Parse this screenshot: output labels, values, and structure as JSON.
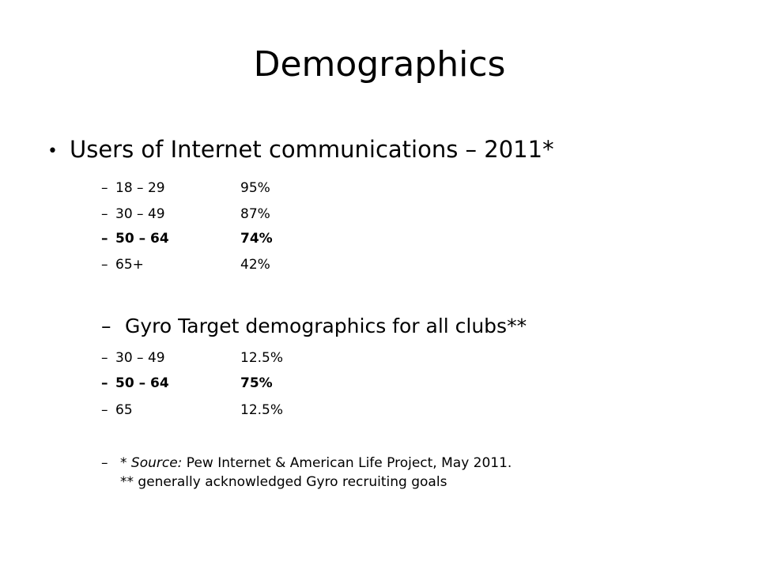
{
  "slide": {
    "title": "Demographics",
    "main_bullet": "Users of Internet communications – 2011*",
    "dash": "–",
    "bullet_glyph": "•",
    "internet_users": [
      {
        "age": "18 – 29",
        "pct": "95%"
      },
      {
        "age": "30 – 49",
        "pct": "87%"
      },
      {
        "age": "50 – 64",
        "pct": "74%"
      },
      {
        "age": "65+",
        "pct": "42%"
      }
    ],
    "gyro_heading": "Gyro Target demographics for all clubs**",
    "gyro_targets": [
      {
        "age": "30 – 49",
        "pct": "12.5%"
      },
      {
        "age": "50 – 64",
        "pct": "75%"
      },
      {
        "age": "65",
        "pct": "12.5%"
      }
    ],
    "source_prefix": "* ",
    "source_label": "Source:",
    "source_text": " Pew Internet & American Life Project, May 2011.",
    "source_line2": "** generally acknowledged Gyro recruiting goals"
  }
}
